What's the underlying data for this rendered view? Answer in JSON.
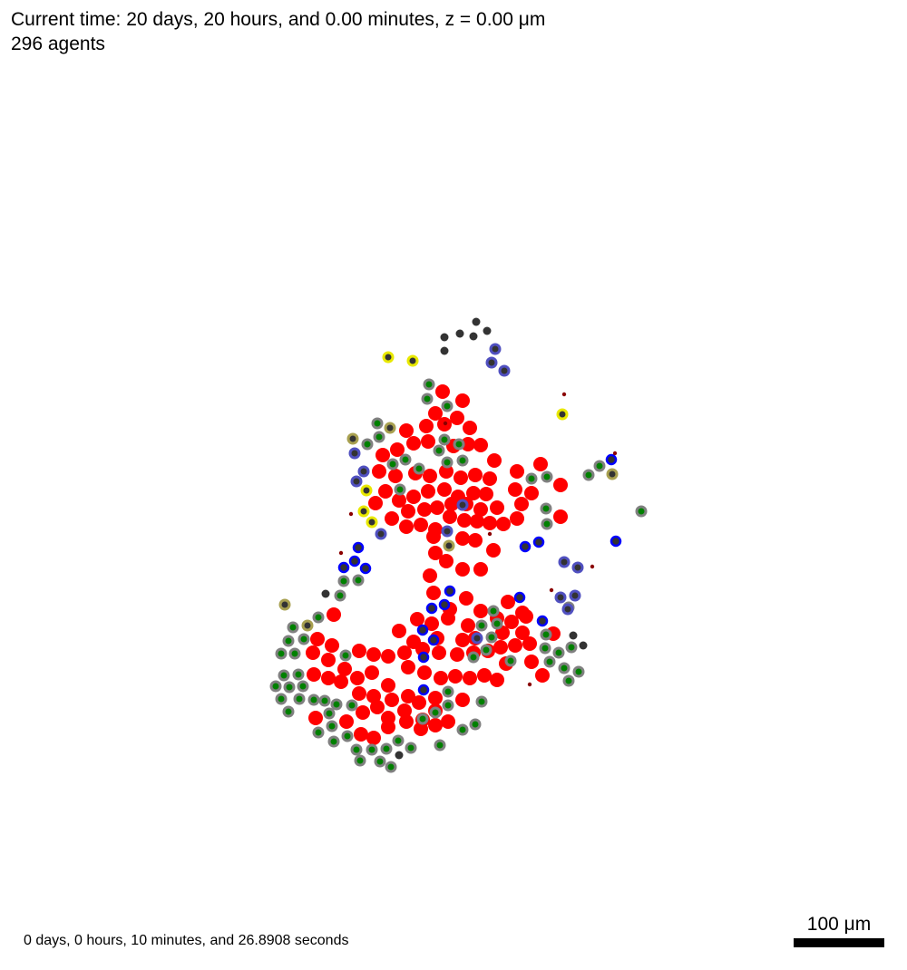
{
  "header": {
    "title": "Current time: 20 days, 20 hours, and 0.00 minutes, z = 0.00 μm",
    "agent_count": "296 agents"
  },
  "footer": {
    "elapsed": "0 days, 0 hours, 10 minutes, and 26.8908 seconds",
    "scale_label": "100 μm"
  },
  "colors": {
    "tumor": "#ff0000",
    "ring_gray": "#808080",
    "core_green": "#008000",
    "ring_blue": "#0000ff",
    "ring_slate": "#5050c0",
    "ring_yellow": "#e8e800",
    "ring_olive": "#a8a050",
    "core_dark": "#333333",
    "debris": "#8b0000"
  }
}
